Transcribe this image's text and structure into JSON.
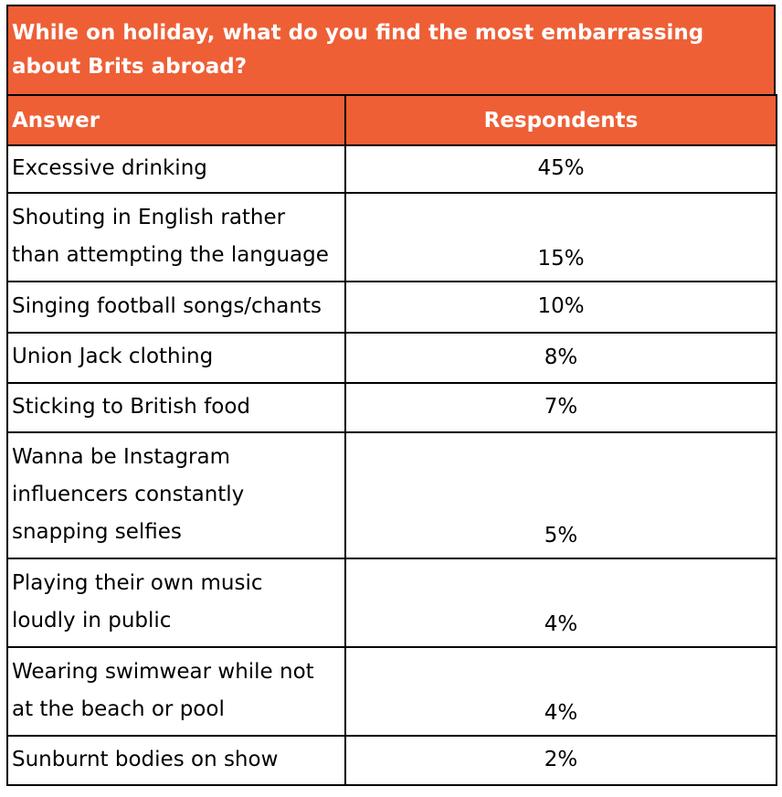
{
  "chart_data": {
    "type": "table",
    "title": "While on holiday, what do you find the most embarrassing about Brits abroad?",
    "columns": [
      "Answer",
      "Respondents"
    ],
    "rows": [
      {
        "answer": "Excessive drinking",
        "value": "45%",
        "lines": [
          "Excessive drinking"
        ]
      },
      {
        "answer": "Shouting in English rather than attempting the language",
        "value": "15%",
        "lines": [
          "Shouting in English rather",
          "than attempting the language"
        ]
      },
      {
        "answer": "Singing football songs/chants",
        "value": "10%",
        "lines": [
          "Singing football songs/chants"
        ]
      },
      {
        "answer": "Union Jack clothing",
        "value": "8%",
        "lines": [
          "Union Jack clothing"
        ]
      },
      {
        "answer": "Sticking to British food",
        "value": "7%",
        "lines": [
          "Sticking to British food"
        ]
      },
      {
        "answer": "Wanna be Instagram influencers constantly snapping selfies",
        "value": "5%",
        "lines": [
          "Wanna be Instagram",
          "influencers constantly",
          "snapping selfies"
        ]
      },
      {
        "answer": "Playing their own music loudly in public",
        "value": "4%",
        "lines": [
          "Playing their own music",
          "loudly in public"
        ]
      },
      {
        "answer": "Wearing swimwear while not at the beach or pool",
        "value": "4%",
        "lines": [
          "Wearing swimwear while not",
          "at the beach or pool"
        ]
      },
      {
        "answer": "Sunburnt bodies on show",
        "value": "2%",
        "lines": [
          "Sunburnt bodies on show"
        ]
      }
    ],
    "header_color": "#EE5F36",
    "header_text_color": "#FFFFFF"
  }
}
